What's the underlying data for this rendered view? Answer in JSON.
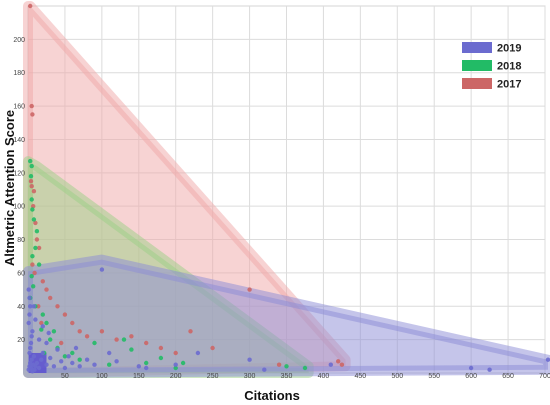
{
  "chart_data": {
    "type": "scatter",
    "xlabel": "Citations",
    "ylabel": "Altmetric Attention Score",
    "xlim": [
      0,
      700
    ],
    "ylim": [
      0,
      220
    ],
    "x_ticks": [
      "50",
      "100",
      "150",
      "200",
      "250",
      "300",
      "350",
      "400",
      "450",
      "500",
      "550",
      "600",
      "650",
      "700"
    ],
    "y_ticks": [
      "20",
      "40",
      "60",
      "80",
      "100",
      "120",
      "140",
      "160",
      "180",
      "200"
    ],
    "grid": true,
    "legend_position": "top-right",
    "legend": [
      "2019",
      "2018",
      "2017"
    ],
    "series": [
      {
        "name": "2019",
        "color": "#6b6bcf",
        "hull_color": "#8c8cd6",
        "hull": [
          [
            0,
            0
          ],
          [
            0,
            61
          ],
          [
            100,
            68
          ],
          [
            704,
            8
          ],
          [
            704,
            2
          ],
          [
            0,
            0
          ]
        ],
        "points": [
          [
            1,
            2
          ],
          [
            2,
            4
          ],
          [
            3,
            6
          ],
          [
            4,
            3
          ],
          [
            5,
            8
          ],
          [
            6,
            1
          ],
          [
            7,
            5
          ],
          [
            8,
            10
          ],
          [
            9,
            2
          ],
          [
            10,
            4
          ],
          [
            2,
            12
          ],
          [
            3,
            15
          ],
          [
            4,
            18
          ],
          [
            5,
            22
          ],
          [
            6,
            25
          ],
          [
            1,
            30
          ],
          [
            2,
            35
          ],
          [
            3,
            40
          ],
          [
            2,
            45
          ],
          [
            1,
            50
          ],
          [
            12,
            6
          ],
          [
            15,
            3
          ],
          [
            18,
            8
          ],
          [
            20,
            12
          ],
          [
            25,
            5
          ],
          [
            30,
            9
          ],
          [
            35,
            4
          ],
          [
            40,
            14
          ],
          [
            45,
            7
          ],
          [
            50,
            3
          ],
          [
            55,
            10
          ],
          [
            60,
            6
          ],
          [
            65,
            15
          ],
          [
            70,
            4
          ],
          [
            80,
            8
          ],
          [
            90,
            5
          ],
          [
            100,
            62
          ],
          [
            110,
            12
          ],
          [
            120,
            7
          ],
          [
            150,
            4
          ],
          [
            160,
            3
          ],
          [
            200,
            5
          ],
          [
            230,
            12
          ],
          [
            300,
            8
          ],
          [
            320,
            2
          ],
          [
            410,
            5
          ],
          [
            600,
            3
          ],
          [
            625,
            2
          ],
          [
            704,
            8
          ],
          [
            15,
            20
          ],
          [
            20,
            28
          ],
          [
            25,
            18
          ],
          [
            8,
            40
          ],
          [
            10,
            32
          ],
          [
            28,
            24
          ]
        ]
      },
      {
        "name": "2018",
        "color": "#22bb66",
        "hull_color": "#9ccf86",
        "hull": [
          [
            0,
            0
          ],
          [
            0,
            127
          ],
          [
            12,
            124
          ],
          [
            380,
            4
          ],
          [
            380,
            0
          ],
          [
            0,
            0
          ]
        ],
        "points": [
          [
            3,
            127
          ],
          [
            5,
            124
          ],
          [
            4,
            118
          ],
          [
            5,
            104
          ],
          [
            6,
            98
          ],
          [
            8,
            92
          ],
          [
            12,
            85
          ],
          [
            10,
            75
          ],
          [
            6,
            70
          ],
          [
            15,
            65
          ],
          [
            20,
            35
          ],
          [
            25,
            30
          ],
          [
            30,
            20
          ],
          [
            40,
            15
          ],
          [
            50,
            10
          ],
          [
            60,
            12
          ],
          [
            70,
            8
          ],
          [
            90,
            18
          ],
          [
            110,
            5
          ],
          [
            130,
            20
          ],
          [
            140,
            14
          ],
          [
            160,
            6
          ],
          [
            180,
            9
          ],
          [
            200,
            3
          ],
          [
            210,
            6
          ],
          [
            350,
            4
          ],
          [
            375,
            3
          ],
          [
            5,
            58
          ],
          [
            7,
            52
          ],
          [
            3,
            45
          ],
          [
            10,
            40
          ],
          [
            18,
            26
          ],
          [
            35,
            25
          ],
          [
            22,
            12
          ]
        ]
      },
      {
        "name": "2017",
        "color": "#cc6666",
        "hull_color": "#f0a8a8",
        "hull": [
          [
            0,
            0
          ],
          [
            0,
            220
          ],
          [
            3,
            220
          ],
          [
            430,
            8
          ],
          [
            430,
            4
          ],
          [
            0,
            0
          ]
        ],
        "points": [
          [
            3,
            220
          ],
          [
            5,
            160
          ],
          [
            6,
            155
          ],
          [
            8,
            109
          ],
          [
            5,
            112
          ],
          [
            7,
            100
          ],
          [
            10,
            90
          ],
          [
            4,
            115
          ],
          [
            12,
            80
          ],
          [
            15,
            75
          ],
          [
            20,
            55
          ],
          [
            25,
            50
          ],
          [
            30,
            45
          ],
          [
            40,
            40
          ],
          [
            50,
            35
          ],
          [
            60,
            30
          ],
          [
            70,
            25
          ],
          [
            80,
            22
          ],
          [
            100,
            25
          ],
          [
            120,
            20
          ],
          [
            140,
            22
          ],
          [
            160,
            18
          ],
          [
            180,
            15
          ],
          [
            200,
            12
          ],
          [
            220,
            25
          ],
          [
            250,
            15
          ],
          [
            300,
            50
          ],
          [
            340,
            5
          ],
          [
            420,
            7
          ],
          [
            425,
            5
          ],
          [
            6,
            65
          ],
          [
            9,
            60
          ],
          [
            14,
            40
          ],
          [
            18,
            30
          ],
          [
            45,
            18
          ]
        ]
      }
    ]
  }
}
